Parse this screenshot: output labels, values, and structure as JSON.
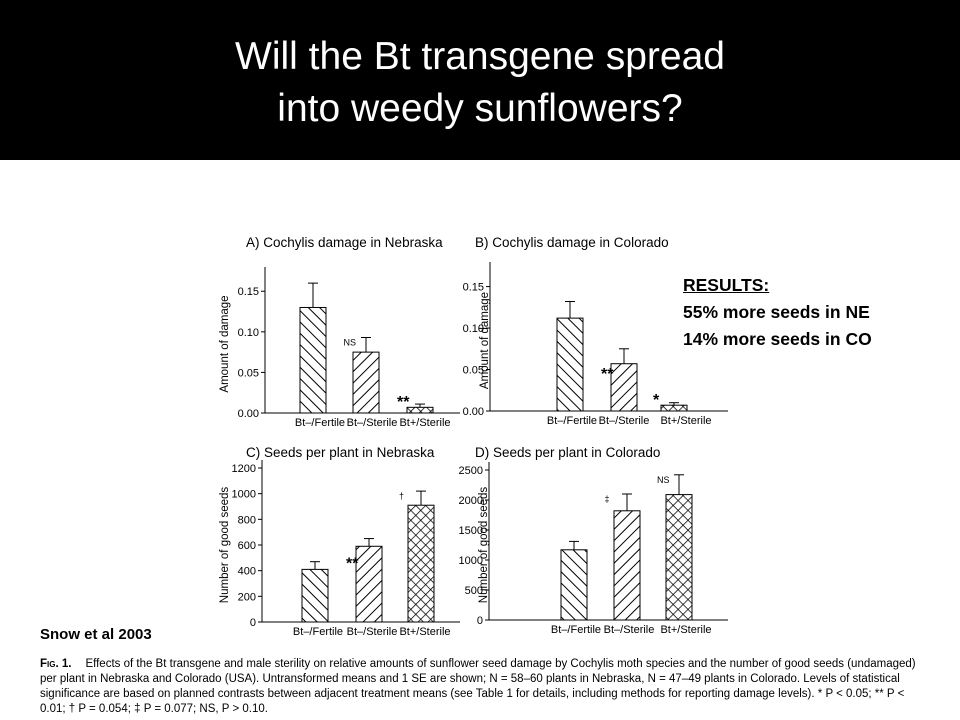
{
  "slide": {
    "title_line1": "Will the Bt transgene spread",
    "title_line2": "into weedy sunflowers?",
    "results_heading": "RESULTS:",
    "results_line1": "55% more seeds in NE",
    "results_line2": "14% more seeds in CO",
    "citation": "Snow et al 2003",
    "caption_label": "Fig. 1.",
    "caption_text": "Effects of the Bt transgene and male sterility on relative amounts of sunflower seed damage by Cochylis moth species and the number of good seeds (undamaged) per plant in Nebraska and Colorado (USA). Untransformed means and 1 SE are shown; N = 58–60 plants in Nebraska, N = 47–49 plants in Colorado. Levels of statistical significance are based on planned contrasts between adjacent treatment means (see Table 1 for details, including methods for reporting damage levels). * P < 0.05; ** P < 0.01; † P = 0.054; ‡ P = 0.077; NS, P > 0.10."
  },
  "colors": {
    "title_background": "#000000",
    "title_text": "#ffffff"
  },
  "chart_data": [
    {
      "type": "bar",
      "title": "A) Cochylis damage in Nebraska",
      "ylabel": "Amount of damage",
      "categories": [
        "Bt–/Fertile",
        "Bt–/Sterile",
        "Bt+/Sterile"
      ],
      "values": [
        0.13,
        0.075,
        0.007
      ],
      "errors": [
        0.03,
        0.018,
        0.004
      ],
      "hatch": [
        "back",
        "fwd",
        "cross"
      ],
      "ylim": [
        0,
        0.17
      ],
      "yticks": [
        0,
        0.05,
        0.1,
        0.15
      ],
      "yticklabels": [
        "0.00",
        "0.05",
        "0.10",
        "0.15"
      ],
      "significance": [
        "NS",
        "**"
      ]
    },
    {
      "type": "bar",
      "title": "B) Cochylis damage in Colorado",
      "ylabel": "Amount of damage",
      "categories": [
        "Bt–/Fertile",
        "Bt–/Sterile",
        "Bt+/Sterile"
      ],
      "values": [
        0.112,
        0.057,
        0.007
      ],
      "errors": [
        0.02,
        0.018,
        0.003
      ],
      "hatch": [
        "back",
        "fwd",
        "cross"
      ],
      "ylim": [
        0,
        0.17
      ],
      "yticks": [
        0,
        0.05,
        0.1,
        0.15
      ],
      "yticklabels": [
        "0.00",
        "0.05",
        "0.10",
        "0.15"
      ],
      "significance": [
        "**",
        "*"
      ]
    },
    {
      "type": "bar",
      "title": "C) Seeds per plant in Nebraska",
      "ylabel": "Number of good seeds",
      "categories": [
        "Bt–/Fertile",
        "Bt–/Sterile",
        "Bt+/Sterile"
      ],
      "values": [
        410,
        590,
        910
      ],
      "errors": [
        60,
        60,
        110
      ],
      "hatch": [
        "back",
        "fwd",
        "cross"
      ],
      "ylim": [
        0,
        1200
      ],
      "yticks": [
        0,
        200,
        400,
        600,
        800,
        1000,
        1200
      ],
      "yticklabels": [
        "0",
        "200",
        "400",
        "600",
        "800",
        "1000",
        "1200"
      ],
      "significance": [
        "**",
        "†"
      ]
    },
    {
      "type": "bar",
      "title": "D) Seeds per plant in Colorado",
      "ylabel": "Number of good seeds",
      "categories": [
        "Bt–/Fertile",
        "Bt–/Sterile",
        "Bt+/Sterile"
      ],
      "values": [
        1170,
        1820,
        2090
      ],
      "errors": [
        140,
        280,
        330
      ],
      "hatch": [
        "back",
        "fwd",
        "cross"
      ],
      "ylim": [
        0,
        2500
      ],
      "yticks": [
        0,
        500,
        1000,
        1500,
        2000,
        2500
      ],
      "yticklabels": [
        "0",
        "500",
        "1000",
        "1500",
        "2000",
        "2500"
      ],
      "significance": [
        "‡",
        "NS"
      ]
    }
  ]
}
